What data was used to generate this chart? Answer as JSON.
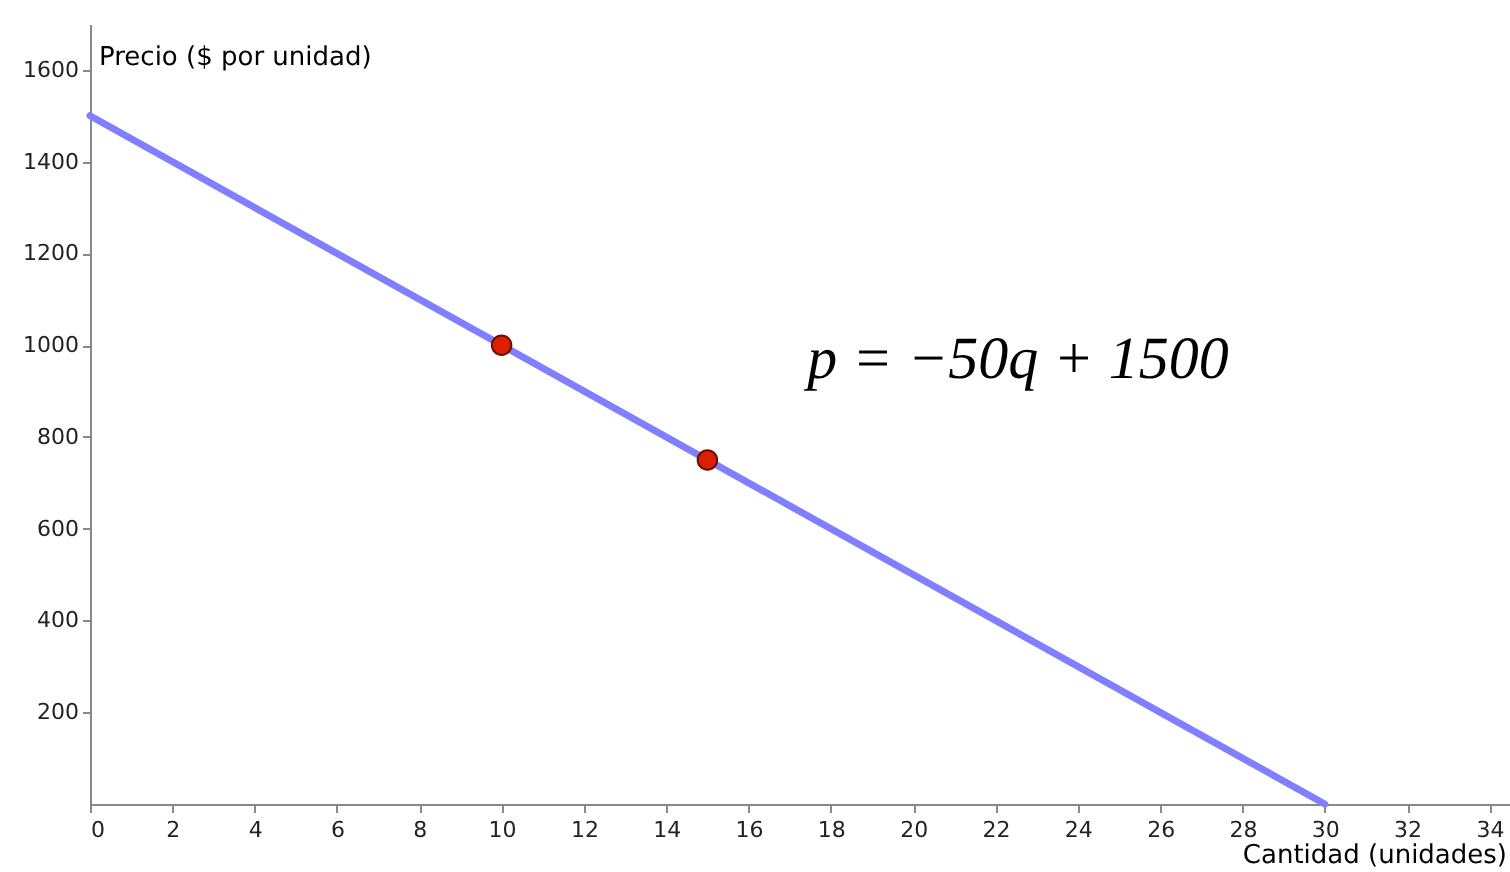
{
  "chart_data": {
    "type": "line",
    "xlabel": "Cantidad (unidades)",
    "ylabel": "Precio ($ por unidad)",
    "xlim": [
      0,
      34.5
    ],
    "ylim": [
      0,
      1700
    ],
    "xticks": [
      0,
      2,
      4,
      6,
      8,
      10,
      12,
      14,
      16,
      18,
      20,
      22,
      24,
      26,
      28,
      30,
      32,
      34
    ],
    "yticks": [
      200,
      400,
      600,
      800,
      1000,
      1200,
      1400,
      1600
    ],
    "grid": false,
    "annotations": [
      "p = −50q + 1500"
    ],
    "series": [
      {
        "type": "line",
        "color": "#7f7fff",
        "x": [
          0,
          30
        ],
        "values": [
          1500,
          0
        ]
      },
      {
        "type": "scatter",
        "color": "#dd1f00",
        "marker": "circle",
        "x": [
          10,
          15
        ],
        "values": [
          1000,
          750
        ]
      }
    ]
  }
}
